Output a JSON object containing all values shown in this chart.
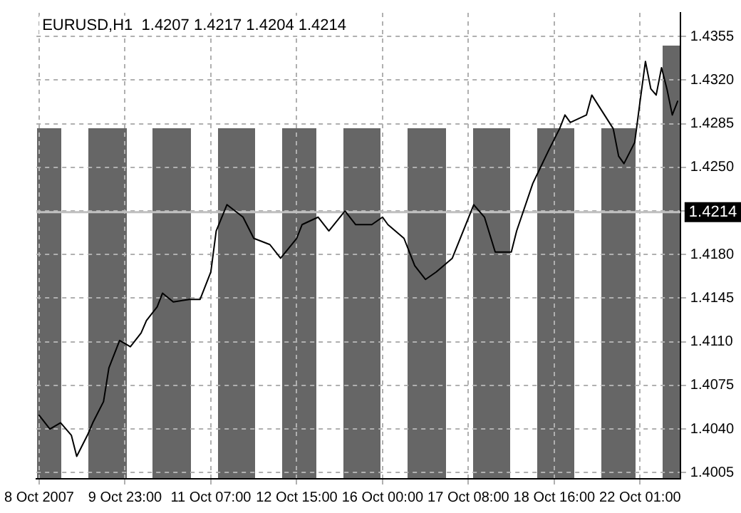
{
  "chart_data": {
    "type": "line",
    "title": "EURUSD,H1  1.4207 1.4217 1.4204 1.4214",
    "categories": [
      "8 Oct 2007",
      null,
      null,
      null,
      null,
      null,
      null,
      null,
      null,
      null,
      null,
      null,
      null,
      null,
      null,
      null,
      "9 Oct 23:00",
      null,
      null,
      null,
      null,
      null,
      null,
      null,
      null,
      null,
      null,
      null,
      null,
      null,
      null,
      null,
      "11 Oct 07:00",
      null,
      null,
      null,
      null,
      null,
      null,
      null,
      null,
      null,
      null,
      null,
      null,
      null,
      null,
      null,
      "12 Oct 15:00",
      null,
      null,
      null,
      null,
      null,
      null,
      null,
      null,
      null,
      null,
      null,
      null,
      null,
      null,
      null,
      "16 Oct 00:00",
      null,
      null,
      null,
      null,
      null,
      null,
      null,
      null,
      null,
      null,
      null,
      null,
      null,
      null,
      null,
      "17 Oct 08:00",
      null,
      null,
      null,
      null,
      null,
      null,
      null,
      null,
      null,
      null,
      null,
      null,
      null,
      null,
      null,
      "18 Oct 16:00",
      null,
      null,
      null,
      null,
      null,
      null,
      null,
      null,
      null,
      null,
      null,
      null,
      null,
      null,
      null,
      "22 Oct 01:00",
      null,
      null,
      null,
      null,
      null,
      null,
      null
    ],
    "series": [
      {
        "color": "#000000",
        "values": [
          1.4051,
          null,
          1.404,
          null,
          1.4045,
          null,
          1.4035,
          1.4018,
          null,
          1.4035,
          1.4045,
          null,
          1.4062,
          1.4089,
          null,
          1.4111,
          null,
          1.4106,
          null,
          1.4117,
          1.4127,
          null,
          1.4138,
          1.4149,
          null,
          1.4142,
          null,
          null,
          1.4144,
          null,
          1.4144,
          null,
          1.4166,
          1.4199,
          null,
          1.422,
          null,
          null,
          1.421,
          null,
          1.4193,
          null,
          null,
          1.4188,
          null,
          1.4177,
          null,
          null,
          1.4193,
          1.4204,
          null,
          null,
          1.421,
          null,
          1.4199,
          null,
          null,
          1.4215,
          null,
          1.4204,
          null,
          null,
          1.4204,
          null,
          1.421,
          1.4204,
          null,
          null,
          1.4193,
          null,
          1.4171,
          null,
          1.416,
          null,
          1.4166,
          null,
          null,
          1.4177,
          null,
          null,
          null,
          1.422,
          null,
          1.421,
          null,
          1.4182,
          null,
          null,
          1.4182,
          1.4199,
          null,
          null,
          1.4237,
          null,
          null,
          1.4264,
          null,
          1.4281,
          1.4292,
          1.4286,
          null,
          null,
          1.4292,
          1.4308,
          null,
          null,
          null,
          1.4281,
          1.4259,
          1.4253,
          null,
          1.427,
          1.4303,
          1.4335,
          1.4313,
          1.4308,
          1.433,
          1.4313,
          1.4292,
          1.4303
        ]
      }
    ],
    "ylim": [
      1.4,
      1.4374
    ],
    "yticks": [
      1.4005,
      {
        "value": 1.404,
        "label": "1.4040"
      },
      1.4075,
      {
        "value": 1.411,
        "label": "1.4110"
      },
      1.4145,
      {
        "value": 1.418,
        "label": "1.4180"
      },
      {
        "value": 1.4215,
        "label": null
      },
      {
        "value": 1.425,
        "label": "1.4250"
      },
      1.4285,
      {
        "value": 1.432,
        "label": "1.4320"
      },
      1.4355
    ],
    "ref_lines": [
      {
        "axis": "y",
        "value": 1.4214,
        "label": "1.4214",
        "color": "#c0c0c0"
      }
    ],
    "grid": true,
    "legend": false,
    "marker": "none",
    "line_style": "solid"
  }
}
